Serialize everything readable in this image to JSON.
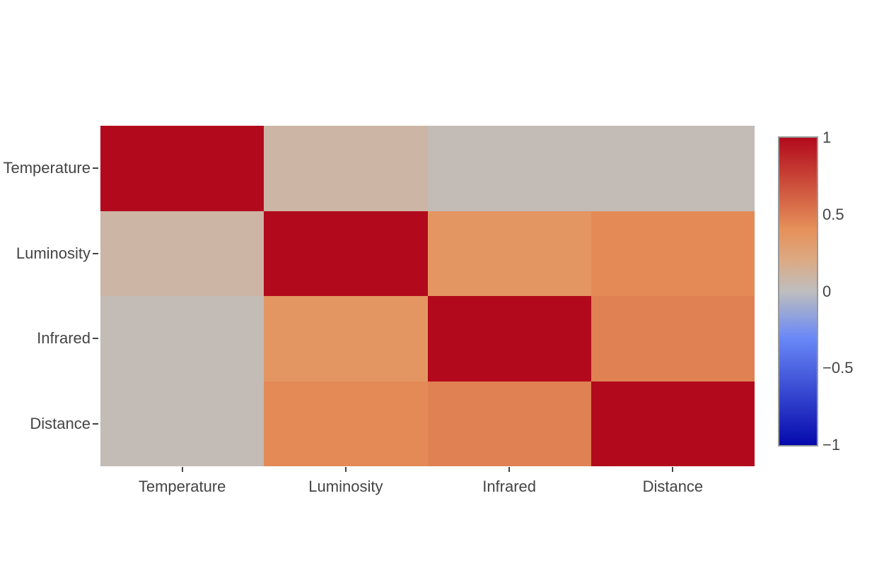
{
  "page": {
    "background": "#ffffff",
    "text_color": "#444444"
  },
  "chart_data": {
    "type": "heatmap",
    "title": "",
    "x_categories": [
      "Temperature",
      "Luminosity",
      "Infrared",
      "Distance"
    ],
    "y_categories": [
      "Temperature",
      "Luminosity",
      "Infrared",
      "Distance"
    ],
    "z": [
      [
        1.0,
        0.09,
        0.03,
        0.03
      ],
      [
        0.09,
        1.0,
        0.36,
        0.43
      ],
      [
        0.03,
        0.36,
        1.0,
        0.47
      ],
      [
        0.03,
        0.43,
        0.47,
        1.0
      ]
    ],
    "zmin": -1,
    "zmax": 1,
    "grid": false,
    "legend_position": "right",
    "colorscale_name": "RdBu",
    "colorscale": [
      [
        0.0,
        "rgb(5,10,172)"
      ],
      [
        0.35,
        "rgb(106,137,247)"
      ],
      [
        0.5,
        "rgb(190,190,190)"
      ],
      [
        0.6,
        "rgb(220,170,132)"
      ],
      [
        0.7,
        "rgb(230,145,90)"
      ],
      [
        1.0,
        "rgb(178,10,28)"
      ]
    ],
    "diagonal_color": "#b20a1c"
  },
  "colorbar": {
    "tick_labels": [
      "1",
      "0.5",
      "0",
      "−0.5",
      "−1"
    ],
    "tick_values": [
      1,
      0.5,
      0,
      -0.5,
      -1
    ],
    "border_color": "#999999"
  }
}
